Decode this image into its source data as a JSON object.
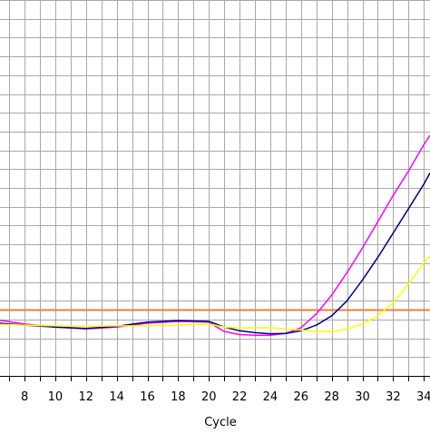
{
  "chart_data": {
    "type": "line",
    "title": "",
    "xlabel": "Cycle",
    "ylabel": "",
    "xlim": [
      6.4,
      34.4
    ],
    "ylim": [
      0,
      1
    ],
    "grid": true,
    "x_ticks": [
      8,
      10,
      12,
      14,
      16,
      18,
      20,
      22,
      24,
      26,
      28,
      30,
      32,
      34
    ],
    "x_tick_labels": [
      "8",
      "10",
      "12",
      "14",
      "16",
      "18",
      "20",
      "22",
      "24",
      "26",
      "28",
      "30",
      "32",
      "34"
    ],
    "threshold": {
      "y": 0.175,
      "color": "#e8803a"
    },
    "series": [
      {
        "color": "#ff00ff",
        "x": [
          6.4,
          8,
          10,
          12,
          14,
          16,
          18,
          20,
          21,
          22,
          23,
          24,
          25,
          26,
          27,
          28,
          29,
          30,
          31,
          32,
          33,
          34,
          34.4
        ],
        "y": [
          0.148,
          0.138,
          0.13,
          0.125,
          0.13,
          0.14,
          0.145,
          0.143,
          0.118,
          0.11,
          0.108,
          0.108,
          0.113,
          0.128,
          0.165,
          0.215,
          0.275,
          0.34,
          0.41,
          0.48,
          0.545,
          0.615,
          0.64
        ]
      },
      {
        "color": "#000080",
        "x": [
          6.4,
          8,
          10,
          12,
          14,
          16,
          18,
          20,
          21,
          22,
          23,
          24,
          25,
          26,
          27,
          28,
          29,
          30,
          31,
          32,
          33,
          34,
          34.4
        ],
        "y": [
          0.14,
          0.135,
          0.13,
          0.126,
          0.132,
          0.143,
          0.147,
          0.145,
          0.13,
          0.12,
          0.115,
          0.112,
          0.113,
          0.12,
          0.135,
          0.16,
          0.2,
          0.255,
          0.315,
          0.38,
          0.445,
          0.51,
          0.54
        ]
      },
      {
        "color": "#ffff00",
        "x": [
          6.4,
          8,
          10,
          12,
          14,
          16,
          18,
          20,
          21,
          22,
          23,
          24,
          25,
          26,
          27,
          28,
          29,
          30,
          31,
          32,
          33,
          34,
          34.4
        ],
        "y": [
          0.137,
          0.135,
          0.133,
          0.132,
          0.133,
          0.133,
          0.135,
          0.138,
          0.13,
          0.127,
          0.128,
          0.128,
          0.125,
          0.122,
          0.118,
          0.118,
          0.125,
          0.138,
          0.16,
          0.195,
          0.245,
          0.3,
          0.32
        ]
      }
    ]
  }
}
